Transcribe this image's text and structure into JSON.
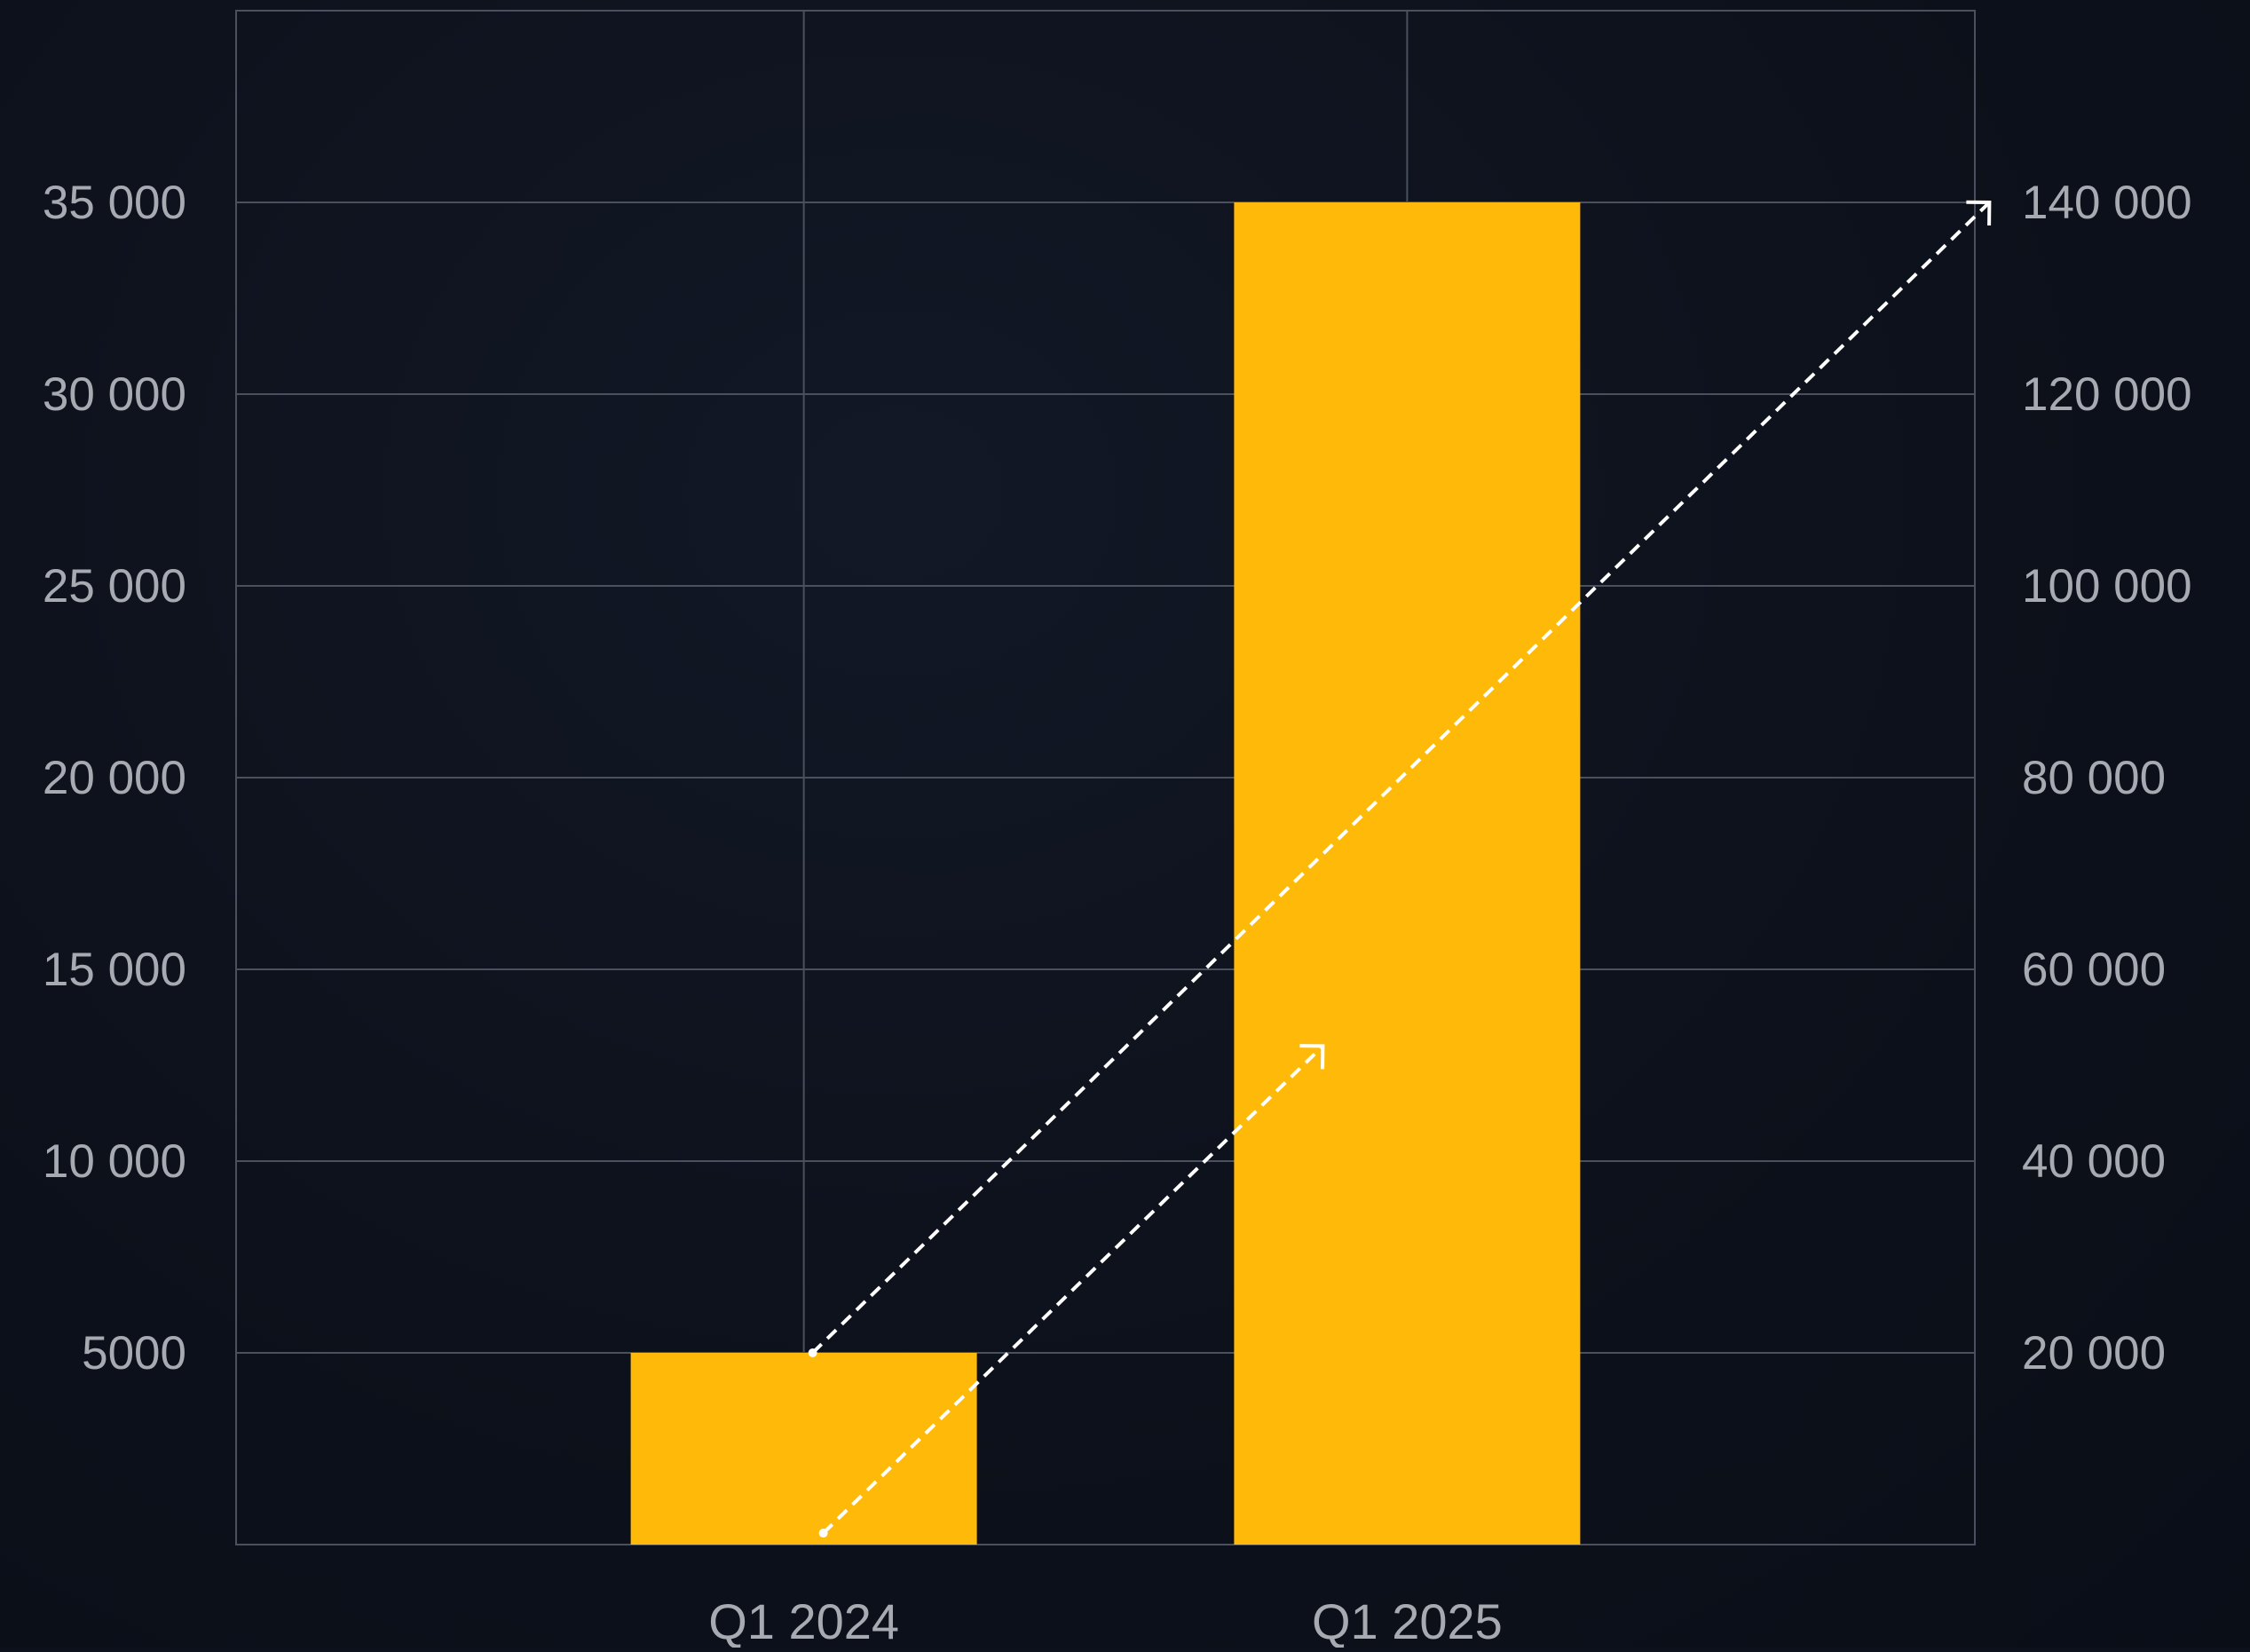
{
  "colors": {
    "background": "#0d111b",
    "grid": "#4a505d",
    "bar": "#ffb908",
    "text": "#a7aab1",
    "arrow": "#ffffff"
  },
  "chart_data": {
    "type": "bar",
    "title": "",
    "xlabel": "",
    "ylabel": "",
    "categories": [
      "Q1 2024",
      "Q1 2025"
    ],
    "series": [
      {
        "values": [
          5000,
          35000
        ],
        "axis": "left"
      }
    ],
    "ylim": [
      0,
      40000
    ],
    "y2lim": [
      0,
      160000
    ],
    "yticks": [
      5000,
      10000,
      15000,
      20000,
      25000,
      30000,
      35000
    ],
    "ytick_labels": [
      "5000",
      "10 000",
      "15 000",
      "20 000",
      "25 000",
      "30 000",
      "35 000"
    ],
    "y2ticks": [
      20000,
      40000,
      60000,
      80000,
      100000,
      120000,
      140000
    ],
    "y2tick_labels": [
      "20 000",
      "40 000",
      "60 000",
      "80 000",
      "100 000",
      "120 000",
      "140 000"
    ],
    "grid": true,
    "legend": "none",
    "annotations": [
      {
        "type": "dashed-arrow",
        "from": {
          "category": "Q1 2024",
          "axis": "left",
          "value": 5000
        },
        "to": {
          "category": "Q1 2025",
          "axis": "right",
          "value": 140000
        }
      },
      {
        "type": "dashed-arrow",
        "from": {
          "category": "Q1 2024",
          "axis": "left",
          "value": 300
        },
        "to": {
          "category": "Q1 2025",
          "axis": "left",
          "value": 13000
        }
      }
    ]
  }
}
